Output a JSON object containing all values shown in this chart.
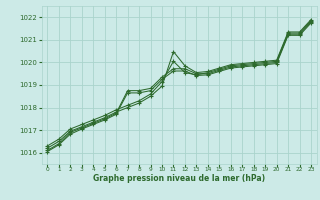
{
  "background_color": "#cceae7",
  "grid_color": "#aad4cc",
  "line_color": "#2d6a2d",
  "marker_color": "#2d6a2d",
  "xlabel": "Graphe pression niveau de la mer (hPa)",
  "ylim": [
    1015.5,
    1022.5
  ],
  "xlim": [
    -0.5,
    23.5
  ],
  "yticks": [
    1016,
    1017,
    1018,
    1019,
    1020,
    1021,
    1022
  ],
  "xticks": [
    0,
    1,
    2,
    3,
    4,
    5,
    6,
    7,
    8,
    9,
    10,
    11,
    12,
    13,
    14,
    15,
    16,
    17,
    18,
    19,
    20,
    21,
    22,
    23
  ],
  "series": [
    [
      1016.3,
      1016.6,
      1017.05,
      1017.25,
      1017.45,
      1017.65,
      1017.9,
      1018.1,
      1018.3,
      1018.6,
      1019.15,
      1020.05,
      1019.55,
      1019.45,
      1019.55,
      1019.7,
      1019.85,
      1019.9,
      1019.95,
      1020.0,
      1020.05,
      1021.3,
      1021.3,
      1021.85
    ],
    [
      1016.2,
      1016.5,
      1016.95,
      1017.15,
      1017.35,
      1017.55,
      1017.8,
      1018.0,
      1018.2,
      1018.5,
      1018.95,
      1020.48,
      1019.85,
      1019.55,
      1019.6,
      1019.75,
      1019.9,
      1019.95,
      1020.0,
      1020.05,
      1020.1,
      1021.35,
      1021.35,
      1021.9
    ],
    [
      1016.1,
      1016.4,
      1016.9,
      1017.1,
      1017.3,
      1017.5,
      1017.75,
      1018.75,
      1018.75,
      1018.85,
      1019.35,
      1019.72,
      1019.72,
      1019.5,
      1019.5,
      1019.65,
      1019.8,
      1019.85,
      1019.9,
      1019.95,
      1020.0,
      1021.25,
      1021.25,
      1021.8
    ],
    [
      1016.05,
      1016.35,
      1016.82,
      1017.05,
      1017.25,
      1017.45,
      1017.7,
      1018.65,
      1018.65,
      1018.75,
      1019.25,
      1019.62,
      1019.62,
      1019.42,
      1019.45,
      1019.6,
      1019.75,
      1019.8,
      1019.85,
      1019.9,
      1019.95,
      1021.2,
      1021.2,
      1021.75
    ]
  ]
}
